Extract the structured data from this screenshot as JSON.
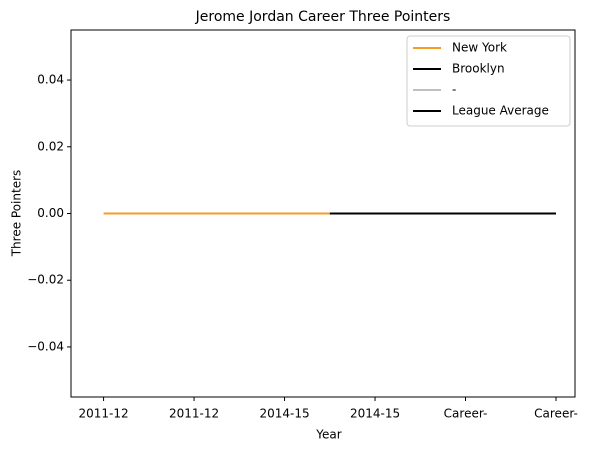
{
  "chart_data": {
    "type": "line",
    "title": "Jerome Jordan Career Three Pointers",
    "xlabel": "Year",
    "ylabel": "Three Pointers",
    "xlim": [
      -0.36,
      5.21
    ],
    "ylim": [
      -0.055,
      0.055
    ],
    "xticks": [
      {
        "value": 0,
        "label": "2011-12"
      },
      {
        "value": 1,
        "label": "2011-12"
      },
      {
        "value": 2,
        "label": "2014-15"
      },
      {
        "value": 3,
        "label": "2014-15"
      },
      {
        "value": 4,
        "label": "Career-"
      },
      {
        "value": 5,
        "label": "Career-"
      }
    ],
    "yticks": [
      {
        "value": -0.04,
        "label": "−0.04"
      },
      {
        "value": -0.02,
        "label": "−0.02"
      },
      {
        "value": 0,
        "label": "0.00"
      },
      {
        "value": 0.02,
        "label": "0.02"
      },
      {
        "value": 0.04,
        "label": "0.04"
      }
    ],
    "legend": "upper right",
    "series": [
      {
        "name": "New York",
        "color": "#f59c24",
        "x": [
          0,
          2.5
        ],
        "values": [
          0,
          0
        ]
      },
      {
        "name": "Brooklyn",
        "color": "#000000",
        "x": [
          2.5,
          5
        ],
        "values": [
          0,
          0
        ]
      },
      {
        "name": "-",
        "color": "#c0c0c0",
        "x": [],
        "values": []
      },
      {
        "name": "League Average",
        "color": "#000000",
        "x": [],
        "values": []
      }
    ]
  }
}
